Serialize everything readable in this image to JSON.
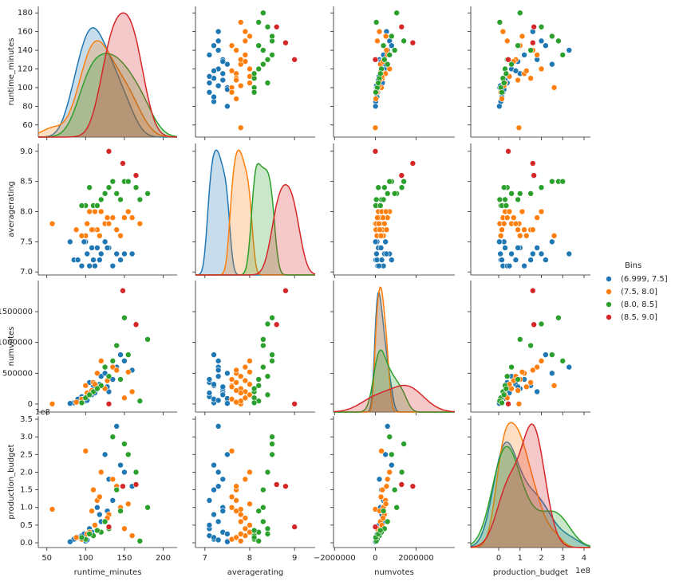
{
  "chart_data": {
    "type": "pairplot",
    "legend_title": "Bins",
    "variables": [
      {
        "name": "runtime_minutes",
        "xlim": [
          39,
          218
        ],
        "ylim": [
          47,
          187
        ],
        "xticks": [
          50,
          100,
          150,
          200
        ],
        "yticks": [
          60,
          80,
          100,
          120,
          140,
          160,
          180
        ]
      },
      {
        "name": "averagerating",
        "xlim": [
          6.79,
          9.46
        ],
        "ylim": [
          6.95,
          9.13
        ],
        "xticks": [
          7,
          8,
          9
        ],
        "yticks": [
          {
            "value": 7,
            "label": "7.0"
          },
          7.5,
          {
            "value": 8,
            "label": "8.0"
          },
          8.5,
          {
            "value": 9,
            "label": "9.0"
          }
        ]
      },
      {
        "name": "numvotes",
        "xlim": [
          -2050000,
          3900000
        ],
        "ylim": [
          -130000,
          2005000
        ],
        "xticks": [
          {
            "value": -2000000,
            "label": "−2000000"
          },
          0,
          2000000
        ],
        "yticks": [
          0,
          500000,
          1000000,
          1500000
        ]
      },
      {
        "name": "production_budget",
        "offset_label": "1e8",
        "xlim": [
          -131000000,
          430000000
        ],
        "ylim": [
          -13500000,
          359000000
        ],
        "xticks": [
          {
            "value": 0,
            "label": "0"
          },
          {
            "value": 100000000,
            "label": "1"
          },
          {
            "value": 200000000,
            "label": "2"
          },
          {
            "value": 300000000,
            "label": "3"
          },
          {
            "value": 400000000,
            "label": "4"
          }
        ],
        "yticks": [
          {
            "value": 0,
            "label": "0.0"
          },
          {
            "value": 50000000,
            "label": "0.5"
          },
          {
            "value": 100000000,
            "label": "1.0"
          },
          {
            "value": 150000000,
            "label": "1.5"
          },
          {
            "value": 200000000,
            "label": "2.0"
          },
          {
            "value": 250000000,
            "label": "2.5"
          },
          {
            "value": 300000000,
            "label": "3.0"
          },
          {
            "value": 350000000,
            "label": "3.5"
          }
        ]
      }
    ],
    "series": [
      {
        "name": "(6.999, 7.5]",
        "color": "#1f77b4",
        "values": [
          [
            95,
            110,
            120,
            130,
            100,
            85,
            140,
            105,
            115,
            125,
            90,
            150,
            135,
            108,
            118,
            98,
            160,
            128,
            112,
            102,
            145,
            80
          ],
          [
            7.1,
            7.2,
            7.3,
            7.4,
            7.5,
            7.2,
            7.3,
            7.1,
            7.4,
            7.5,
            7.2,
            7.3,
            7.1,
            7.4,
            7.2,
            7.5,
            7.3,
            7.4,
            7.1,
            7.3,
            7.2,
            7.5
          ],
          [
            120000,
            300000,
            450000,
            200000,
            50000,
            20000,
            600000,
            350000,
            250000,
            500000,
            80000,
            700000,
            400000,
            150000,
            320000,
            90000,
            550000,
            280000,
            180000,
            60000,
            800000,
            10000
          ],
          [
            20000000,
            150000000,
            60000000,
            180000000,
            5000000,
            10000000,
            330000000,
            40000000,
            100000000,
            250000000,
            15000000,
            200000000,
            120000000,
            30000000,
            80000000,
            25000000,
            160000000,
            90000000,
            50000000,
            8000000,
            220000000,
            3000000
          ]
        ]
      },
      {
        "name": "(7.5, 8.0]",
        "color": "#ff7f0e",
        "values": [
          [
            57,
            100,
            115,
            125,
            135,
            105,
            145,
            110,
            160,
            120,
            95,
            130,
            140,
            150,
            112,
            170,
            88,
            118,
            128,
            102,
            155,
            108
          ],
          [
            7.8,
            7.6,
            7.7,
            7.8,
            7.9,
            8.0,
            7.6,
            7.7,
            7.9,
            8.0,
            7.6,
            7.8,
            7.7,
            7.9,
            8.0,
            7.8,
            7.7,
            7.6,
            7.9,
            7.8,
            8.0,
            7.7
          ],
          [
            2000,
            300000,
            500000,
            250000,
            600000,
            150000,
            400000,
            350000,
            200000,
            700000,
            80000,
            450000,
            550000,
            100000,
            320000,
            50000,
            30000,
            280000,
            380000,
            180000,
            520000,
            220000
          ],
          [
            95000000,
            260000000,
            120000000,
            60000000,
            180000000,
            30000000,
            100000000,
            150000000,
            20000000,
            200000000,
            10000000,
            80000000,
            160000000,
            40000000,
            50000000,
            5000000,
            15000000,
            130000000,
            70000000,
            25000000,
            110000000,
            90000000
          ]
        ]
      },
      {
        "name": "(8.0, 8.5]",
        "color": "#2ca02c",
        "values": [
          [
            180,
            150,
            165,
            110,
            120,
            140,
            100,
            130,
            170,
            95,
            155,
            125,
            145,
            105,
            115,
            135
          ],
          [
            8.3,
            8.5,
            8.4,
            8.1,
            8.2,
            8.3,
            8.1,
            8.4,
            8.2,
            8.1,
            8.5,
            8.3,
            8.2,
            8.4,
            8.1,
            8.5
          ],
          [
            1050000,
            1400000,
            1300000,
            200000,
            300000,
            950000,
            100000,
            450000,
            50000,
            20000,
            800000,
            600000,
            400000,
            150000,
            250000,
            700000
          ],
          [
            100000000,
            280000000,
            200000000,
            20000000,
            30000000,
            150000000,
            10000000,
            40000000,
            5000000,
            15000000,
            250000000,
            60000000,
            90000000,
            25000000,
            35000000,
            300000000
          ]
        ]
      },
      {
        "name": "(8.5, 9.0]",
        "color": "#d62728",
        "values": [
          [
            130,
            148,
            165
          ],
          [
            9.0,
            8.8,
            8.6
          ],
          [
            2000,
            1840000,
            1290000
          ],
          [
            45000000,
            160000000,
            165000000
          ]
        ]
      }
    ]
  }
}
